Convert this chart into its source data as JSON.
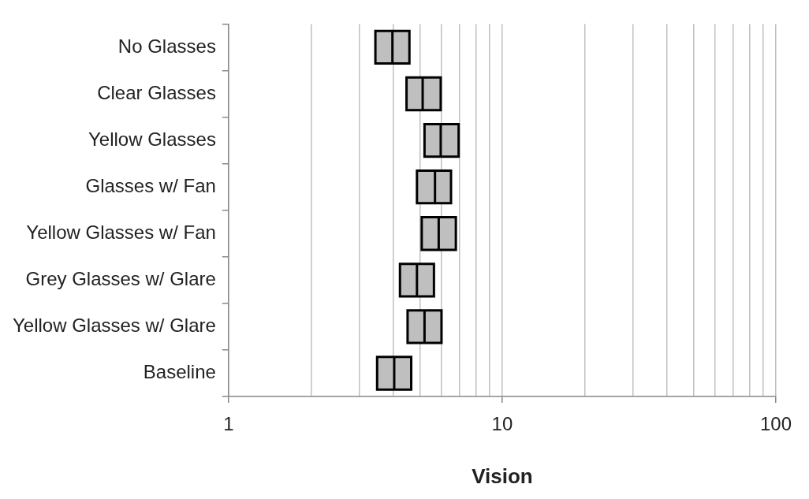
{
  "chart_data": {
    "type": "box",
    "orientation": "horizontal",
    "xlabel": "Vision",
    "log": "x",
    "grid": "x",
    "color": "#bfbfbf",
    "categories": [
      "No Glasses",
      "Clear Glasses",
      "Yellow Glasses",
      "Glasses w/ Fan",
      "Yellow Glasses w/ Fan",
      "Grey Glasses w/ Glare",
      "Yellow Glasses w/ Glare",
      "Baseline"
    ],
    "boxes": [
      {
        "low": 3.44,
        "q1": 3.44,
        "median": 3.97,
        "q3": 4.58,
        "high": 4.58
      },
      {
        "low": 4.47,
        "q1": 4.47,
        "median": 5.12,
        "q3": 5.96,
        "high": 5.96
      },
      {
        "low": 5.2,
        "q1": 5.2,
        "median": 5.96,
        "q3": 6.93,
        "high": 6.93
      },
      {
        "low": 4.88,
        "q1": 4.88,
        "median": 5.68,
        "q3": 6.5,
        "high": 6.5
      },
      {
        "low": 5.08,
        "q1": 5.08,
        "median": 5.86,
        "q3": 6.77,
        "high": 6.77
      },
      {
        "low": 4.23,
        "q1": 4.23,
        "median": 4.88,
        "q3": 5.63,
        "high": 5.63
      },
      {
        "low": 4.51,
        "q1": 4.51,
        "median": 5.2,
        "q3": 6.0,
        "high": 6.0
      },
      {
        "low": 3.49,
        "q1": 3.49,
        "median": 4.03,
        "q3": 4.65,
        "high": 4.65
      }
    ],
    "xlim": [
      1,
      100
    ],
    "xticks": [
      1,
      {
        "value": 2,
        "label": null
      },
      {
        "value": 3,
        "label": null
      },
      {
        "value": 4,
        "label": null
      },
      {
        "value": 5,
        "label": null
      },
      {
        "value": 6,
        "label": null
      },
      {
        "value": 7,
        "label": null
      },
      {
        "value": 8,
        "label": null
      },
      {
        "value": 9,
        "label": null
      },
      10,
      {
        "value": 20,
        "label": null
      },
      {
        "value": 30,
        "label": null
      },
      {
        "value": 40,
        "label": null
      },
      {
        "value": 50,
        "label": null
      },
      {
        "value": 60,
        "label": null
      },
      {
        "value": 70,
        "label": null
      },
      {
        "value": 80,
        "label": null
      },
      {
        "value": 90,
        "label": null
      },
      100
    ]
  }
}
